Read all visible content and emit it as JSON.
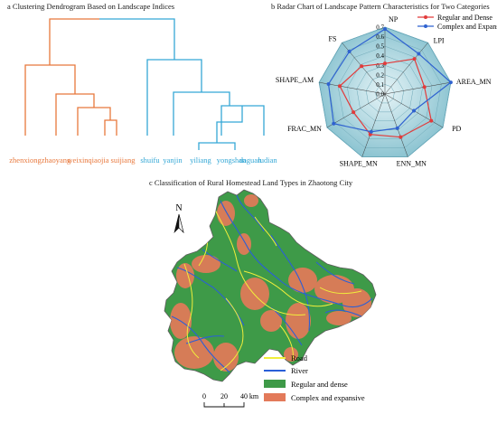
{
  "panels": {
    "a": {
      "title": "a  Clustering Dendrogram Based on Landscape Indices",
      "leaves": [
        "zhenxiong",
        "zhaoyang",
        "weixin",
        "qiaojia",
        "suijiang",
        "shuifu",
        "yanjin",
        "yiliang",
        "yongshan",
        "daguan",
        "ludian"
      ],
      "leaf_colors": [
        "#e8783c",
        "#e8783c",
        "#e8783c",
        "#e8783c",
        "#e8783c",
        "#35a8d6",
        "#35a8d6",
        "#35a8d6",
        "#35a8d6",
        "#35a8d6",
        "#35a8d6"
      ]
    },
    "b": {
      "title": "b Radar Chart of Landscape Pattern Characteristics for Two Categories"
    },
    "c": {
      "title": "c Classification of Rural Homestead Land Types in Zhaotong City",
      "north": "N",
      "scale_labels": [
        "0",
        "20",
        "40",
        "km"
      ],
      "legend": [
        {
          "label": "Road",
          "color": "#f1ee3b",
          "kind": "line"
        },
        {
          "label": "River",
          "color": "#2a5fd8",
          "kind": "line"
        },
        {
          "label": "Regular and dense",
          "color": "#3e9a48",
          "kind": "fill"
        },
        {
          "label": "Complex and expansive",
          "color": "#e37a5a",
          "kind": "fill"
        }
      ]
    }
  },
  "chart_data": {
    "type": "radar",
    "axes": [
      "NP",
      "LPI",
      "AREA_MN",
      "PD",
      "ENN_MN",
      "SHAPE_MN",
      "FRAC_MN",
      "SHAPE_AM",
      "FS"
    ],
    "rlim": [
      0,
      0.7
    ],
    "tick_labels": [
      "0.0",
      "0.1",
      "0.2",
      "0.3",
      "0.4",
      "0.5",
      "0.6",
      "0.7"
    ],
    "series": [
      {
        "name": "Regular and Dense",
        "color": "#e23b3b",
        "values": [
          0.32,
          0.48,
          0.42,
          0.56,
          0.48,
          0.45,
          0.38,
          0.48,
          0.38
        ]
      },
      {
        "name": "Complex and Expansive",
        "color": "#2f62d0",
        "values": [
          0.68,
          0.55,
          0.7,
          0.35,
          0.38,
          0.42,
          0.62,
          0.6,
          0.58
        ]
      }
    ],
    "legend_position": "top-right"
  }
}
